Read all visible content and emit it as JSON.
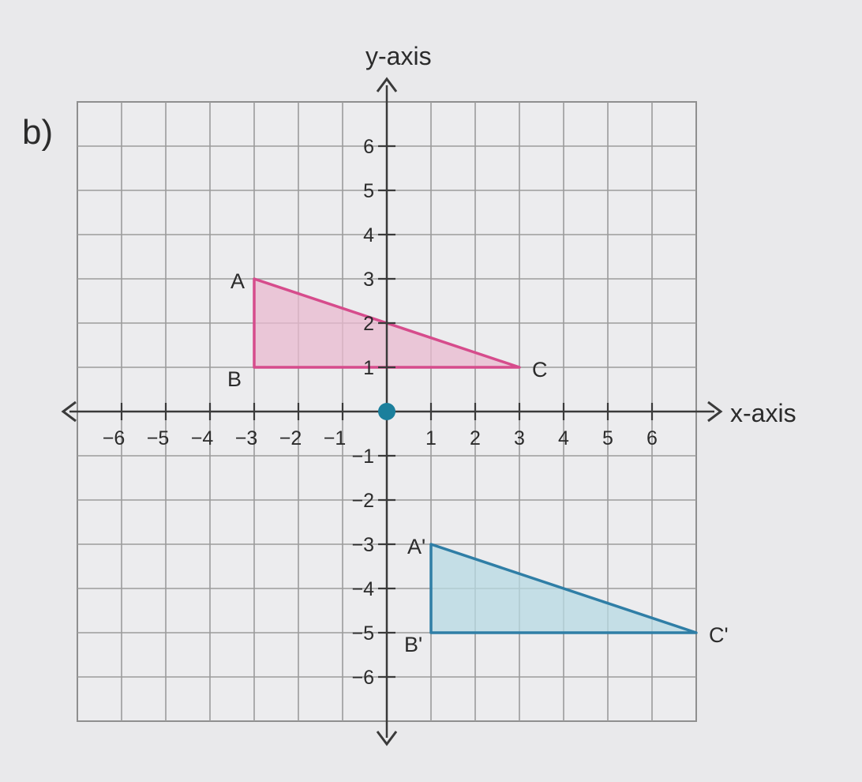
{
  "part_label": "b)",
  "axes": {
    "x_name": "x-axis",
    "y_name": "y-axis",
    "xlim": [
      -7,
      7
    ],
    "ylim": [
      -7,
      7
    ],
    "x_ticks": [
      -6,
      -5,
      -4,
      -3,
      -2,
      -1,
      1,
      2,
      3,
      4,
      5,
      6
    ],
    "y_ticks": [
      -6,
      -5,
      -4,
      -3,
      -2,
      -1,
      1,
      2,
      3,
      4,
      5,
      6
    ],
    "grid": true
  },
  "origin_dot_color": "#1b7f9c",
  "shapes": [
    {
      "id": "abc",
      "stroke": "#d64c8c",
      "fill": "#e9b9cf",
      "vertices": [
        {
          "label": "A",
          "x": -3,
          "y": 3
        },
        {
          "label": "B",
          "x": -3,
          "y": 1
        },
        {
          "label": "C",
          "x": 3,
          "y": 1
        }
      ]
    },
    {
      "id": "abc-prime",
      "stroke": "#2f7ea6",
      "fill": "#b7d9e3",
      "vertices": [
        {
          "label": "A'",
          "x": 1,
          "y": -3
        },
        {
          "label": "B'",
          "x": 1,
          "y": -5
        },
        {
          "label": "C'",
          "x": 7,
          "y": -5
        }
      ]
    }
  ]
}
